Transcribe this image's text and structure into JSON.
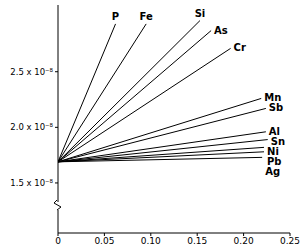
{
  "chart_data": {
    "type": "line",
    "xlim": [
      0,
      0.25
    ],
    "ylim": [
      1.05e-08,
      3.1e-08
    ],
    "xticks": [
      0,
      0.05,
      {
        "value": 0.1,
        "label": "0.10"
      },
      0.15,
      {
        "value": 0.2,
        "label": "0.20"
      },
      0.25
    ],
    "yticks": [
      {
        "value": 1.5e-08,
        "label": "1.5 x 10⁻⁸"
      },
      {
        "value": 2e-08,
        "label": "2.0 x 10⁻⁸"
      },
      {
        "value": 2.5e-08,
        "label": "2.5 x 10⁻⁸"
      }
    ],
    "grid": false,
    "series": [
      {
        "name": "P",
        "color": "#000000",
        "x": [
          0,
          0.062
        ],
        "values": [
          1.69e-08,
          2.93e-08
        ]
      },
      {
        "name": "Fe",
        "color": "#000000",
        "x": [
          0,
          0.095
        ],
        "values": [
          1.69e-08,
          2.93e-08
        ]
      },
      {
        "name": "Si",
        "color": "#000000",
        "x": [
          0,
          0.153
        ],
        "values": [
          1.69e-08,
          2.96e-08
        ]
      },
      {
        "name": "As",
        "color": "#000000",
        "x": [
          0,
          0.165
        ],
        "values": [
          1.69e-08,
          2.87e-08
        ]
      },
      {
        "name": "Cr",
        "color": "#000000",
        "x": [
          0,
          0.186
        ],
        "values": [
          1.69e-08,
          2.71e-08
        ]
      },
      {
        "name": "Mn",
        "color": "#000000",
        "x": [
          0,
          0.219
        ],
        "values": [
          1.69e-08,
          2.26e-08
        ]
      },
      {
        "name": "Sb",
        "color": "#000000",
        "x": [
          0,
          0.224
        ],
        "values": [
          1.69e-08,
          2.17e-08
        ]
      },
      {
        "name": "Al",
        "color": "#000000",
        "x": [
          0,
          0.224
        ],
        "values": [
          1.69e-08,
          1.96e-08
        ]
      },
      {
        "name": "Sn",
        "color": "#000000",
        "x": [
          0,
          0.226
        ],
        "values": [
          1.69e-08,
          1.89e-08
        ]
      },
      {
        "name": "Ni",
        "color": "#000000",
        "x": [
          0,
          0.222
        ],
        "values": [
          1.69e-08,
          1.82e-08
        ]
      },
      {
        "name": "Pb",
        "color": "#000000",
        "x": [
          0,
          0.222
        ],
        "values": [
          1.69e-08,
          1.78e-08
        ]
      },
      {
        "name": "Ag",
        "color": "#000000",
        "x": [
          0,
          0.22
        ],
        "values": [
          1.69e-08,
          1.73e-08
        ]
      }
    ]
  }
}
